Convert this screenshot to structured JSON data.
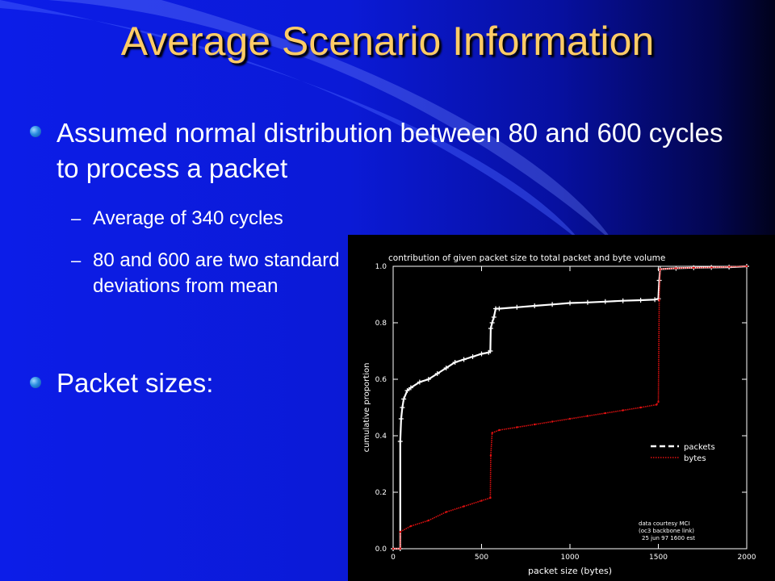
{
  "slide": {
    "title": "Average Scenario Information",
    "bullets": [
      "Assumed normal distribution between 80 and 600 cycles to process a packet",
      "Packet sizes:"
    ],
    "sub_bullets": [
      "Average of 340 cycles",
      "80 and 600 are two standard deviations from mean"
    ],
    "colors": {
      "title": "#ffcc66",
      "text": "#ffffff",
      "background": "#0c1de8"
    }
  },
  "chart_data": {
    "type": "line",
    "title": "contribution of given packet size to total packet and byte volume",
    "xlabel": "packet size (bytes)",
    "ylabel": "cumulative proportion",
    "xlim": [
      0,
      2000
    ],
    "ylim": [
      0,
      1.0
    ],
    "x_ticks": [
      "0",
      "500",
      "1000",
      "1500",
      "2000"
    ],
    "y_ticks": [
      "0.0",
      "0.2",
      "0.4",
      "0.6",
      "0.8",
      "1.0"
    ],
    "grid": false,
    "legend_position": "right",
    "annotation": [
      "data courtesy MCI",
      "(oc3 backbone link)",
      "25 jun 97 1600 est"
    ],
    "series": [
      {
        "name": "packets",
        "color": "#ffffff",
        "x": [
          0,
          40,
          40,
          45,
          52,
          60,
          80,
          100,
          150,
          200,
          250,
          300,
          350,
          400,
          450,
          500,
          540,
          550,
          552,
          560,
          570,
          580,
          600,
          700,
          800,
          900,
          1000,
          1100,
          1200,
          1300,
          1400,
          1480,
          1500,
          1505,
          1510,
          1600,
          1700,
          1800,
          1900,
          2000
        ],
        "y": [
          0.0,
          0.0,
          0.38,
          0.46,
          0.5,
          0.53,
          0.56,
          0.57,
          0.59,
          0.6,
          0.62,
          0.64,
          0.66,
          0.67,
          0.68,
          0.69,
          0.695,
          0.7,
          0.78,
          0.8,
          0.82,
          0.85,
          0.85,
          0.855,
          0.86,
          0.865,
          0.87,
          0.872,
          0.875,
          0.878,
          0.88,
          0.882,
          0.885,
          0.95,
          0.99,
          0.993,
          0.995,
          0.996,
          0.997,
          1.0
        ]
      },
      {
        "name": "bytes",
        "color": "#e01010",
        "x": [
          0,
          40,
          40,
          100,
          200,
          300,
          400,
          500,
          550,
          552,
          560,
          600,
          700,
          800,
          900,
          1000,
          1100,
          1200,
          1300,
          1400,
          1490,
          1500,
          1505,
          1510,
          1600,
          1700,
          1800,
          1900,
          2000
        ],
        "y": [
          0.0,
          0.0,
          0.06,
          0.08,
          0.1,
          0.13,
          0.15,
          0.17,
          0.18,
          0.33,
          0.41,
          0.42,
          0.43,
          0.44,
          0.45,
          0.46,
          0.47,
          0.48,
          0.49,
          0.5,
          0.51,
          0.52,
          0.88,
          0.99,
          0.993,
          0.995,
          0.996,
          0.998,
          1.0
        ]
      }
    ]
  }
}
